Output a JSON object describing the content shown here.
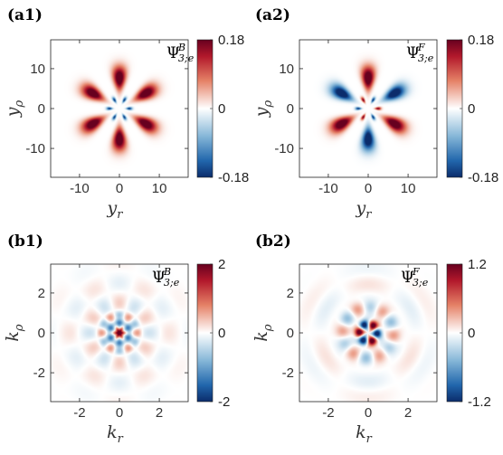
{
  "figure": {
    "panels": [
      {
        "id": "a1",
        "label": "(a1)",
        "func": {
          "symbol": "Ψ",
          "sup": "B",
          "sub": "3;e"
        },
        "xlabel": {
          "base": "y",
          "sub": "r"
        },
        "ylabel": {
          "base": "y",
          "sub": "ρ"
        },
        "xticks": [
          "-10",
          "0",
          "10"
        ],
        "yticks": [
          "10",
          "0",
          "-10"
        ],
        "cbar_ticks": [
          "0.18",
          "0",
          "-0.18"
        ],
        "show_xlabel": true
      },
      {
        "id": "a2",
        "label": "(a2)",
        "func": {
          "symbol": "Ψ",
          "sup": "F",
          "sub": "3;e"
        },
        "xlabel": {
          "base": "y",
          "sub": "r"
        },
        "ylabel": {
          "base": "y",
          "sub": "ρ"
        },
        "xticks": [
          "-10",
          "0",
          "10"
        ],
        "yticks": [
          "10",
          "0",
          "-10"
        ],
        "cbar_ticks": [
          "0.18",
          "0",
          "-0.18"
        ],
        "show_xlabel": true
      },
      {
        "id": "b1",
        "label": "(b1)",
        "func": {
          "symbol": "Ψ",
          "sup": "B",
          "sub": "3;e"
        },
        "xlabel": {
          "base": "k",
          "sub": "r"
        },
        "ylabel": {
          "base": "k",
          "sub": "ρ"
        },
        "xticks": [
          "-2",
          "0",
          "2"
        ],
        "yticks": [
          "2",
          "0",
          "-2"
        ],
        "cbar_ticks": [
          "2",
          "0",
          "-2"
        ],
        "show_xlabel": false
      },
      {
        "id": "b2",
        "label": "(b2)",
        "func": {
          "symbol": "Ψ",
          "sup": "F",
          "sub": "3;e"
        },
        "xlabel": {
          "base": "k",
          "sub": "r"
        },
        "ylabel": {
          "base": "k",
          "sub": "ρ"
        },
        "xticks": [
          "-2",
          "0",
          "2"
        ],
        "yticks": [
          "2",
          "0",
          "-2"
        ],
        "cbar_ticks": [
          "1.2",
          "0",
          "-1.2"
        ],
        "show_xlabel": true
      }
    ],
    "colormap": {
      "neg": "#0b3c8c",
      "mid": "#ffffff",
      "pos": "#b2182b"
    }
  },
  "chart_data": [
    {
      "type": "heatmap",
      "title": "(a1)",
      "field": "Ψ^B_{3;e}",
      "xlabel": "y_r",
      "ylabel": "y_ρ",
      "xlim": [
        -14,
        14
      ],
      "ylim": [
        -14,
        14
      ],
      "x_ticks": [
        -10,
        0,
        10
      ],
      "y_ticks": [
        -10,
        0,
        10
      ],
      "clim": [
        -0.18,
        0.18
      ],
      "pattern": "six positive lobes at r≈6 (angles 30,90,150,210,270,330 deg), six small negative spots at r≈2"
    },
    {
      "type": "heatmap",
      "title": "(a2)",
      "field": "Ψ^F_{3;e}",
      "xlabel": "y_r",
      "ylabel": "y_ρ",
      "xlim": [
        -14,
        14
      ],
      "ylim": [
        -14,
        14
      ],
      "x_ticks": [
        -10,
        0,
        10
      ],
      "y_ticks": [
        -10,
        0,
        10
      ],
      "clim": [
        -0.18,
        0.18
      ],
      "pattern": "six lobes at r≈6 alternating sign (odd symmetry), small opposite-sign spots near center"
    },
    {
      "type": "heatmap",
      "title": "(b1)",
      "field": "Ψ^B_{3;e}",
      "xlabel": "k_r",
      "ylabel": "k_ρ",
      "xlim": [
        -3.5,
        3.5
      ],
      "ylim": [
        -3.5,
        3.5
      ],
      "x_ticks": [
        -2,
        0,
        2
      ],
      "y_ticks": [
        -2,
        0,
        2
      ],
      "clim": [
        -2,
        2
      ],
      "pattern": "strong positive peak at origin, negative ring r≈0.5, weak six-fold oscillating lobes"
    },
    {
      "type": "heatmap",
      "title": "(b2)",
      "field": "Ψ^F_{3;e}",
      "xlabel": "k_r",
      "ylabel": "k_ρ",
      "xlim": [
        -3.5,
        3.5
      ],
      "ylim": [
        -3.5,
        3.5
      ],
      "x_ticks": [
        -2,
        0,
        2
      ],
      "y_ticks": [
        -2,
        0,
        2
      ],
      "clim": [
        -1.2,
        1.2
      ],
      "pattern": "six alternating-sign lobes at r≈0.5 near origin, weak oscillating outer lobes"
    }
  ]
}
